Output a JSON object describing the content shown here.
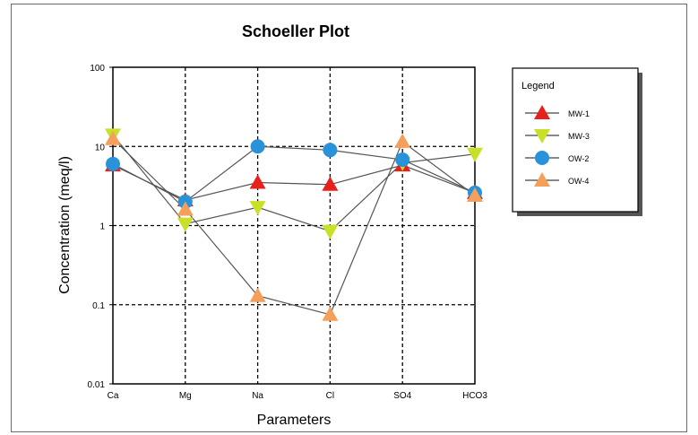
{
  "chart_data": {
    "type": "line",
    "title": "Schoeller Plot",
    "xlabel": "Parameters",
    "ylabel": "Concentration (meq/l)",
    "categories": [
      "Ca",
      "Mg",
      "Na",
      "Cl",
      "SO4",
      "HCO3"
    ],
    "y_scale": "log",
    "ylim": [
      0.01,
      100
    ],
    "y_ticks": [
      {
        "value": 0.01,
        "label": "0.01"
      },
      {
        "value": 0.1,
        "label": "0.1"
      },
      {
        "value": 1,
        "label": "1"
      },
      {
        "value": 10,
        "label": "10"
      },
      {
        "value": 100,
        "label": "100"
      }
    ],
    "grid": true,
    "legend": {
      "title": "Legend",
      "position": "right"
    },
    "series": [
      {
        "name": "MW-1",
        "color": "#e8201c",
        "marker": "triangle-up",
        "values": [
          5.8,
          2.1,
          3.5,
          3.3,
          5.8,
          2.6
        ]
      },
      {
        "name": "MW-3",
        "color": "#c8e026",
        "marker": "triangle-down",
        "values": [
          14.0,
          1.05,
          1.7,
          0.85,
          6.2,
          8.0
        ]
      },
      {
        "name": "OW-2",
        "color": "#2a92d8",
        "marker": "circle",
        "values": [
          6.0,
          2.0,
          10.0,
          9.0,
          6.8,
          2.6
        ]
      },
      {
        "name": "OW-4",
        "color": "#f5a05a",
        "marker": "triangle-up",
        "values": [
          12.5,
          1.6,
          0.13,
          0.075,
          11.5,
          2.4
        ]
      }
    ]
  }
}
